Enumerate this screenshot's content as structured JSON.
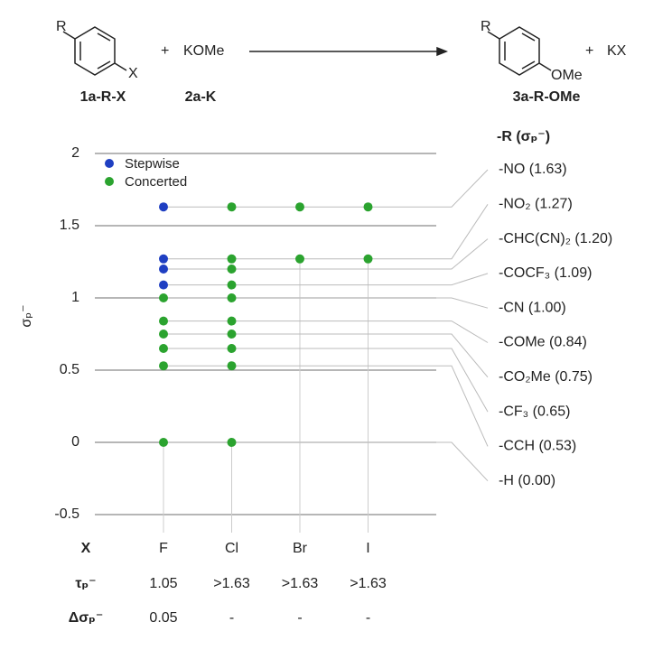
{
  "scheme": {
    "reactant_r": "R",
    "reactant_x": "X",
    "plus1": "+",
    "reagent": "KOMe",
    "label_1": "1a-R-X",
    "label_2": "2a-K",
    "product_r": "R",
    "product_ome": "OMe",
    "plus2": "+",
    "byproduct": "KX",
    "label_3": "3a-R-OMe"
  },
  "chart_data": {
    "type": "scatter",
    "ylabel": "σₚ⁻",
    "categories": [
      "F",
      "Cl",
      "Br",
      "I"
    ],
    "ylim": [
      -0.5,
      2
    ],
    "yticks": [
      -0.5,
      0,
      0.5,
      1,
      1.5,
      2
    ],
    "grid": true,
    "legend": "top-left",
    "series": [
      {
        "name": "Stepwise",
        "color": "#1f3fc2",
        "x": [
          "F",
          "F",
          "F",
          "F"
        ],
        "values": [
          1.63,
          1.27,
          1.2,
          1.09
        ]
      },
      {
        "name": "Concerted",
        "color": "#2ba32f",
        "x": [
          "F",
          "F",
          "F",
          "F",
          "F",
          "F",
          "Cl",
          "Cl",
          "Cl",
          "Cl",
          "Cl",
          "Cl",
          "Cl",
          "Cl",
          "Cl",
          "Cl",
          "Br",
          "Br",
          "I",
          "I"
        ],
        "values": [
          1.0,
          0.84,
          0.75,
          0.65,
          0.53,
          0.0,
          1.63,
          1.27,
          1.2,
          1.09,
          1.0,
          0.84,
          0.75,
          0.65,
          0.53,
          0.0,
          1.63,
          1.27,
          1.63,
          1.27
        ]
      }
    ]
  },
  "substituents": {
    "title": "-R (σₚ⁻)",
    "labels": [
      "-NO (1.63)",
      "-NO₂ (1.27)",
      "-CHC(CN)₂ (1.20)",
      "-COCF₃ (1.09)",
      "-CN (1.00)",
      "-COMe (0.84)",
      "-CO₂Me (0.75)",
      "-CF₃ (0.65)",
      "-CCH (0.53)",
      "-H (0.00)"
    ],
    "values": [
      1.63,
      1.27,
      1.2,
      1.09,
      1.0,
      0.84,
      0.75,
      0.65,
      0.53,
      0.0
    ]
  },
  "table": {
    "header": "X",
    "rows": [
      {
        "label": "τₚ⁻",
        "cells": [
          "1.05",
          ">1.63",
          ">1.63",
          ">1.63"
        ]
      },
      {
        "label": "Δσₚ⁻",
        "cells": [
          "0.05",
          "-",
          "-",
          "-"
        ]
      }
    ]
  }
}
